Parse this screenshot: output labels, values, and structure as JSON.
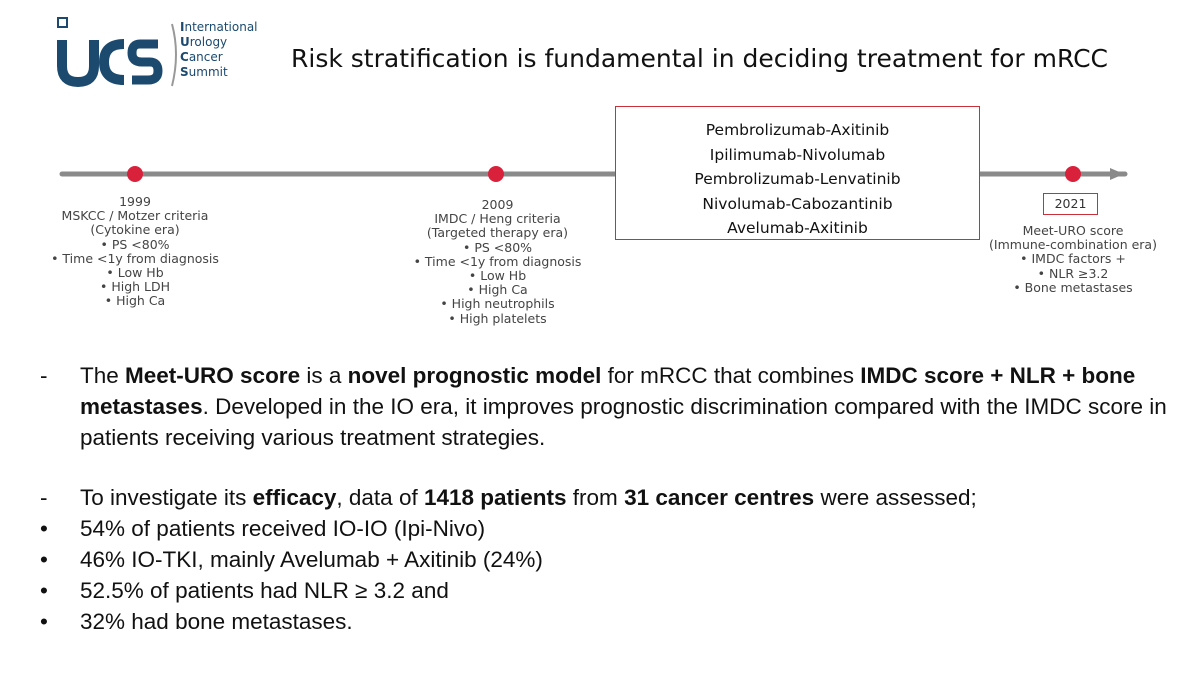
{
  "logo": {
    "acronym": "iucs",
    "words": [
      {
        "initial": "I",
        "rest": "nternational"
      },
      {
        "initial": "U",
        "rest": "rology"
      },
      {
        "initial": "C",
        "rest": "ancer"
      },
      {
        "initial": "S",
        "rest": "ummit"
      }
    ]
  },
  "title": "Risk stratification is fundamental in deciding treatment for mRCC",
  "timeline": {
    "milestones": [
      {
        "year": "1999",
        "lines": [
          "MSKCC / Motzer criteria",
          "(Cytokine era)",
          "• PS <80%",
          "• Time <1y from diagnosis",
          "• Low Hb",
          "• High LDH",
          "• High Ca"
        ]
      },
      {
        "year": "2009",
        "lines": [
          "IMDC / Heng criteria",
          "(Targeted therapy era)",
          "• PS <80%",
          "• Time <1y from diagnosis",
          "• Low Hb",
          "• High Ca",
          "• High neutrophils",
          "• High platelets"
        ]
      },
      {
        "year": "2021",
        "lines": [
          "Meet-URO score",
          "(Immune-combination era)",
          "• IMDC factors +",
          "• NLR ≥3.2",
          "• Bone metastases"
        ]
      }
    ],
    "combinations": [
      "Pembrolizumab-Axitinib",
      "Ipilimumab-Nivolumab",
      "Pembrolizumab-Lenvatinib",
      "Nivolumab-Cabozantinib",
      "Avelumab-Axitinib"
    ],
    "colors": {
      "line": "#8a8a8a",
      "dot": "#d9213b",
      "box": "#c9303a"
    }
  },
  "bullets": {
    "b1": {
      "marker": "-",
      "t1": "The ",
      "s1": "Meet-URO score",
      "t2": " is a ",
      "s2": "novel prognostic model",
      "t3": " for mRCC that combines ",
      "s3": "IMDC score + NLR + bone metastases",
      "t4": ". Developed in the IO era, it improves prognostic discrimination compared with the IMDC score in patients receiving various treatment strategies."
    },
    "b2": {
      "marker": "-",
      "t1": "To investigate its ",
      "s1": "efficacy",
      "t2": ", data of ",
      "s2": "1418 patients",
      "t3": " from ",
      "s3": "31 cancer centres",
      "t4": " were assessed;"
    },
    "items": [
      {
        "marker": "•",
        "text": "54% of patients received IO-IO (Ipi-Nivo)"
      },
      {
        "marker": "•",
        "text": "46% IO-TKI, mainly Avelumab + Axitinib (24%)"
      },
      {
        "marker": "•",
        "text": "52.5% of patients had NLR ≥ 3.2 and"
      },
      {
        "marker": "•",
        "text": "32% had bone metastases."
      }
    ]
  }
}
